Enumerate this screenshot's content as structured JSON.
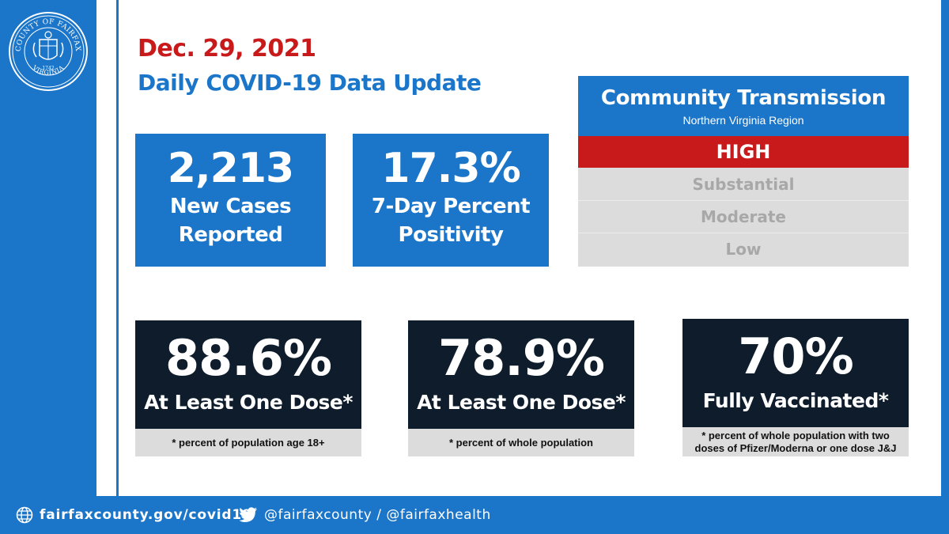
{
  "header": {
    "date": "Dec. 29, 2021",
    "title": "Daily COVID-19 Data Update"
  },
  "seal": {
    "icon": "county-seal-icon",
    "text_top": "COUNTY OF FAIRFAX",
    "text_bottom": "VIRGINIA",
    "year": "1742"
  },
  "stats": {
    "cases": {
      "value": "2,213",
      "label_1": "New Cases",
      "label_2": "Reported"
    },
    "positivity": {
      "value": "17.3%",
      "label_1": "7-Day Percent",
      "label_2": "Positivity"
    }
  },
  "community_transmission": {
    "title": "Community Transmission",
    "region": "Northern Virginia Region",
    "levels": [
      "HIGH",
      "Substantial",
      "Moderate",
      "Low"
    ],
    "current_level": "HIGH"
  },
  "vaccination": [
    {
      "value": "88.6%",
      "label": "At Least One Dose*",
      "note": "* percent of population age 18+"
    },
    {
      "value": "78.9%",
      "label": "At Least One Dose*",
      "note": "* percent of whole population"
    },
    {
      "value": "70%",
      "label": "Fully Vaccinated*",
      "note_1": "* percent of whole population with two",
      "note_2": "doses of Pfizer/Moderna or one dose J&J"
    }
  ],
  "footer": {
    "url": "fairfaxcounty.gov/covid19",
    "social": "@fairfaxcounty / @fairfaxhealth",
    "url_icon": "globe-icon",
    "social_icon": "twitter-bird-icon"
  },
  "colors": {
    "brand_blue": "#1b75c8",
    "alert_red": "#c8191b",
    "dark_navy": "#0e1c2c",
    "muted_gray": "#dcdcdc"
  }
}
